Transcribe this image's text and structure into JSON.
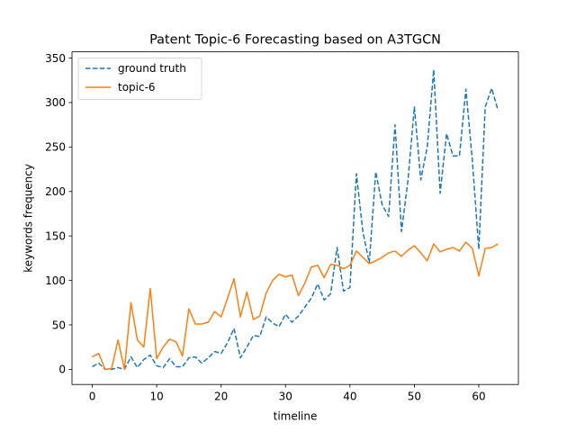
{
  "chart_data": {
    "type": "line",
    "title": "Patent Topic-6 Forecasting based on A3TGCN",
    "xlabel": "timeline",
    "ylabel": "keywords frequency",
    "xlim": [
      -3.15,
      66.15
    ],
    "ylim": [
      -17,
      357
    ],
    "xticks": [
      0,
      10,
      20,
      30,
      40,
      50,
      60
    ],
    "yticks": [
      0,
      50,
      100,
      150,
      200,
      250,
      300,
      350
    ],
    "legend_position": "top-left",
    "x": [
      0,
      1,
      2,
      3,
      4,
      5,
      6,
      7,
      8,
      9,
      10,
      11,
      12,
      13,
      14,
      15,
      16,
      17,
      18,
      19,
      20,
      21,
      22,
      23,
      24,
      25,
      26,
      27,
      28,
      29,
      30,
      31,
      32,
      33,
      34,
      35,
      36,
      37,
      38,
      39,
      40,
      41,
      42,
      43,
      44,
      45,
      46,
      47,
      48,
      49,
      50,
      51,
      52,
      53,
      54,
      55,
      56,
      57,
      58,
      59,
      60,
      61,
      62,
      63
    ],
    "series": [
      {
        "name": "ground truth",
        "style": "dashed",
        "color": "#1f77b4",
        "values": [
          3,
          7,
          0,
          0,
          2,
          0,
          14,
          2,
          11,
          16,
          4,
          2,
          12,
          3,
          3,
          13,
          14,
          7,
          13,
          20,
          18,
          30,
          46,
          13,
          25,
          38,
          37,
          59,
          52,
          48,
          62,
          53,
          60,
          70,
          80,
          96,
          78,
          85,
          137,
          88,
          92,
          220,
          155,
          120,
          222,
          185,
          172,
          275,
          155,
          212,
          295,
          213,
          250,
          337,
          198,
          265,
          240,
          240,
          315,
          235,
          135,
          295,
          316,
          291
        ]
      },
      {
        "name": "topic-6",
        "style": "solid",
        "color": "#ff7f0e",
        "values": [
          14,
          18,
          0,
          1,
          33,
          0,
          75,
          33,
          25,
          91,
          12,
          25,
          34,
          31,
          15,
          68,
          51,
          51,
          53,
          65,
          59,
          80,
          102,
          59,
          87,
          56,
          60,
          86,
          100,
          107,
          104,
          106,
          83,
          97,
          115,
          117,
          103,
          118,
          117,
          113,
          117,
          133,
          126,
          119,
          122,
          126,
          131,
          133,
          127,
          134,
          139,
          131,
          122,
          141,
          132,
          135,
          137,
          133,
          143,
          136,
          105,
          136,
          137,
          141
        ]
      }
    ]
  }
}
